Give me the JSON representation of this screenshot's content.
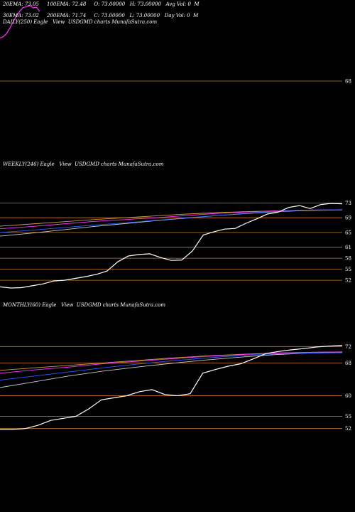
{
  "header": {
    "line1": "20EMA: 73.05     100EMA: 72.48     O: 73.00000   H: 73.00000   Avg Vol: 0  M",
    "line2": "30EMA: 73.02     200EMA: 71.74     C: 73.00000   L: 73.00000   Day Vol: 0  M",
    "line3": "DAILY(250) Eagle   View  USDGMD charts MunafaSutra.com"
  },
  "colors": {
    "background": "#000000",
    "price": "#ffffff",
    "level_line": "#c8782a",
    "ema_blue": "#2a5cff",
    "ema_magenta": "#ff33ff",
    "ema_brown": "#c8a040",
    "ema_white": "#cccccc"
  },
  "chart_data": [
    {
      "type": "line",
      "title": "DAILY(250) Eagle   View  USDGMD charts MunafaSutra.com",
      "levels": [
        "68"
      ],
      "series": [
        {
          "values": [
            67.2,
            67.5,
            68.2,
            69.4,
            70.8,
            72.0,
            73.1,
            73.9,
            74.0,
            74.3,
            73.8,
            73.9,
            73.0
          ]
        }
      ]
    },
    {
      "type": "line",
      "title": "WEEKLY(246) Eagle   View  USDGMD charts MunafaSutra.com",
      "ylim": [
        47,
        76
      ],
      "levels": [
        "73",
        "69",
        "65",
        "61",
        "58",
        "55",
        "52"
      ],
      "series": [
        {
          "values": [
            50.2,
            49.9,
            50.0,
            50.5,
            51.0,
            51.8,
            52.0,
            52.5,
            53.0,
            53.6,
            54.5,
            57.0,
            58.6,
            59.0,
            59.2,
            58.2,
            57.4,
            57.5,
            60.0,
            64.3,
            65.2,
            65.9,
            66.1,
            67.5,
            68.7,
            70.0,
            70.5,
            71.8,
            72.3,
            71.5,
            72.6,
            72.9,
            72.8
          ]
        },
        {
          "values": [
            65.0,
            65.6,
            66.3,
            67.0,
            67.6,
            68.3,
            69.0,
            69.6,
            70.3,
            70.8,
            71.1,
            71.2
          ]
        },
        {
          "values": [
            66.0,
            66.6,
            67.3,
            68.0,
            68.5,
            69.0,
            69.6,
            70.2,
            70.6,
            70.9,
            71.1,
            71.2
          ]
        },
        {
          "values": [
            66.7,
            67.3,
            67.9,
            68.5,
            69.0,
            69.5,
            70.0,
            70.4,
            70.7,
            70.9,
            71.0,
            71.1
          ]
        },
        {
          "values": [
            64.0,
            64.8,
            65.7,
            66.6,
            67.4,
            68.2,
            68.9,
            69.6,
            70.2,
            70.7,
            71.0,
            71.2
          ]
        }
      ]
    },
    {
      "type": "line",
      "title": "MONTHLY(60) Eagle   View  USDGMD charts MunafaSutra.com",
      "ylim": [
        49,
        75
      ],
      "levels": [
        "72",
        "68",
        "60",
        "55",
        "52"
      ],
      "series": [
        {
          "values": [
            51.8,
            51.8,
            52.0,
            52.8,
            54.0,
            54.5,
            55.0,
            56.8,
            59.0,
            59.5,
            60.0,
            61.0,
            61.5,
            60.3,
            60.0,
            60.5,
            65.5,
            66.4,
            67.2,
            67.8,
            69.0,
            70.3,
            70.8,
            71.2,
            71.5,
            71.9,
            72.1,
            72.3
          ]
        },
        {
          "values": [
            63.8,
            64.8,
            65.8,
            66.8,
            67.7,
            68.5,
            69.2,
            69.8,
            70.2,
            70.4,
            70.5
          ]
        },
        {
          "values": [
            65.5,
            66.3,
            67.0,
            67.8,
            68.4,
            69.0,
            69.6,
            70.0,
            70.4,
            70.6,
            70.7
          ]
        },
        {
          "values": [
            66.2,
            66.8,
            67.4,
            68.0,
            68.6,
            69.2,
            69.7,
            70.1,
            70.4,
            70.6,
            70.7
          ]
        },
        {
          "values": [
            62.0,
            63.4,
            64.8,
            66.0,
            67.0,
            67.9,
            68.7,
            69.4,
            70.0,
            70.4,
            70.6
          ]
        }
      ]
    }
  ]
}
